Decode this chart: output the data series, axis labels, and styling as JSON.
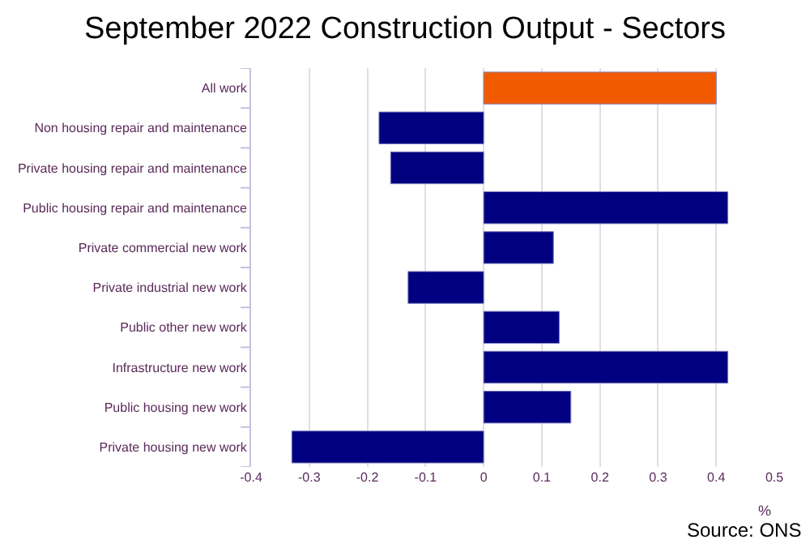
{
  "chart_data": {
    "type": "bar",
    "orientation": "horizontal",
    "title": "September 2022 Construction Output - Sectors",
    "categories": [
      "All work",
      "Non housing repair and maintenance",
      "Private housing repair and maintenance",
      "Public housing repair and maintenance",
      "Private commercial new work",
      "Private industrial new work",
      "Public other new work",
      "Infrastructure new work",
      "Public housing new work",
      "Private housing new work"
    ],
    "values": [
      0.4,
      -0.18,
      -0.16,
      0.42,
      0.12,
      -0.13,
      0.13,
      0.42,
      0.15,
      -0.33
    ],
    "colors": [
      "#f25a00",
      "#000080",
      "#000080",
      "#000080",
      "#000080",
      "#000080",
      "#000080",
      "#000080",
      "#000080",
      "#000080"
    ],
    "xlim": [
      -0.4,
      0.5
    ],
    "xticks": [
      -0.4,
      -0.3,
      -0.2,
      -0.1,
      0,
      0.1,
      0.2,
      0.3,
      0.4,
      0.5
    ],
    "xlabel": "%",
    "grid": "x",
    "legend": false,
    "annotations": [
      "Source: ONS"
    ]
  }
}
